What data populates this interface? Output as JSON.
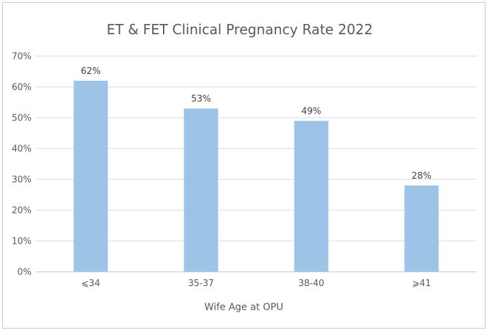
{
  "chart_data": {
    "type": "bar",
    "title": "ET & FET Clinical Pregnancy Rate 2022",
    "xlabel": "Wife Age at OPU",
    "ylabel": "",
    "categories": [
      "⩽34",
      "35-37",
      "38-40",
      "⩾41"
    ],
    "values": [
      62,
      53,
      49,
      28
    ],
    "data_labels": [
      "62%",
      "53%",
      "49%",
      "28%"
    ],
    "ylim": [
      0,
      70
    ],
    "yticks": [
      0,
      10,
      20,
      30,
      40,
      50,
      60,
      70
    ],
    "ytick_labels": [
      "0%",
      "10%",
      "20%",
      "30%",
      "40%",
      "50%",
      "60%",
      "70%"
    ],
    "grid": true,
    "legend": "none",
    "bar_color": "#9dc3e6"
  }
}
